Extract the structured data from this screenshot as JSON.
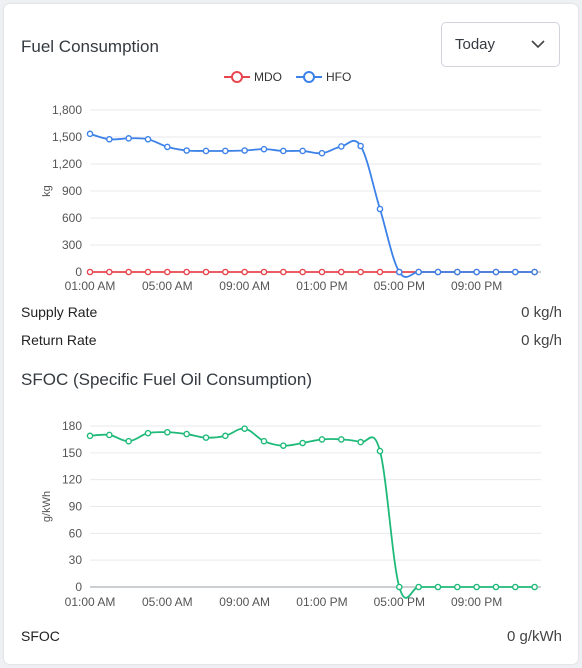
{
  "fuel": {
    "title": "Fuel Consumption",
    "period_select": "Today",
    "supply_rate_label": "Supply Rate",
    "supply_rate_value": "0 kg/h",
    "return_rate_label": "Return Rate",
    "return_rate_value": "0 kg/h"
  },
  "sfoc": {
    "title": "SFOC (Specific Fuel Oil Consumption)",
    "label": "SFOC",
    "value": "0 g/kWh"
  },
  "colors": {
    "mdo": "#e8464e",
    "hfo": "#3d82e8",
    "sfoc": "#1fba7a"
  },
  "chart_data": [
    {
      "type": "line",
      "ylabel": "kg",
      "xlabel": "",
      "ylim": [
        0,
        1800
      ],
      "yticks": [
        0,
        300,
        600,
        900,
        1200,
        1500,
        1800
      ],
      "ytick_labels": [
        "0",
        "300",
        "600",
        "900",
        "1,200",
        "1,500",
        "1,800"
      ],
      "xtick_labels": [
        "01:00 AM",
        "05:00 AM",
        "09:00 AM",
        "01:00 PM",
        "05:00 PM",
        "09:00 PM"
      ],
      "x_hours": [
        0,
        1,
        2,
        3,
        4,
        5,
        6,
        7,
        8,
        9,
        10,
        11,
        12,
        13,
        14,
        15,
        16,
        17,
        18,
        19,
        20,
        21,
        22,
        23
      ],
      "legend_position": "top",
      "grid": true,
      "series": [
        {
          "name": "MDO",
          "values": [
            0,
            0,
            0,
            0,
            0,
            0,
            0,
            0,
            0,
            0,
            0,
            0,
            0,
            0,
            0,
            0,
            0,
            0,
            0,
            0,
            0,
            0,
            0,
            0
          ]
        },
        {
          "name": "HFO",
          "values": [
            1535,
            1475,
            1485,
            1475,
            1390,
            1350,
            1345,
            1345,
            1350,
            1365,
            1345,
            1345,
            1320,
            1395,
            1400,
            700,
            0,
            0,
            0,
            0,
            0,
            0,
            0,
            0
          ]
        }
      ]
    },
    {
      "type": "line",
      "ylabel": "g/kWh",
      "xlabel": "",
      "ylim": [
        0,
        180
      ],
      "yticks": [
        0,
        30,
        60,
        90,
        120,
        150,
        180
      ],
      "ytick_labels": [
        "0",
        "30",
        "60",
        "90",
        "120",
        "150",
        "180"
      ],
      "xtick_labels": [
        "01:00 AM",
        "05:00 AM",
        "09:00 AM",
        "01:00 PM",
        "05:00 PM",
        "09:00 PM"
      ],
      "x_hours": [
        0,
        1,
        2,
        3,
        4,
        5,
        6,
        7,
        8,
        9,
        10,
        11,
        12,
        13,
        14,
        15,
        16,
        17,
        18,
        19,
        20,
        21,
        22,
        23
      ],
      "grid": true,
      "series": [
        {
          "name": "SFOC",
          "values": [
            169,
            170,
            163,
            172,
            173,
            171,
            167,
            169,
            177,
            163,
            158,
            161,
            165,
            165,
            162,
            152,
            0,
            0,
            0,
            0,
            0,
            0,
            0,
            0
          ]
        }
      ]
    }
  ]
}
